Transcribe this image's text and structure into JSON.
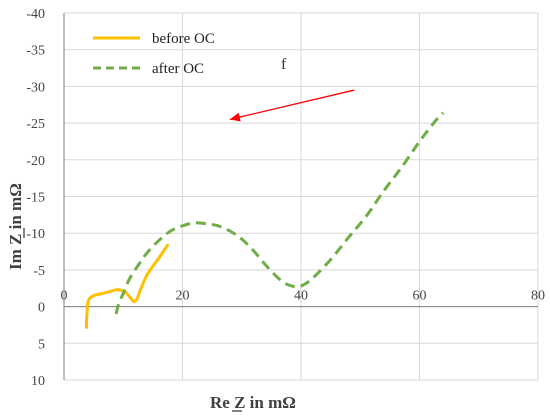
{
  "chart_data": {
    "type": "line",
    "title": "",
    "xlabel": "Re Z in mΩ",
    "ylabel": "Im Z in mΩ",
    "xlim": [
      0,
      80
    ],
    "ylim": [
      -40,
      10
    ],
    "y_axis_inverted": true,
    "grid": true,
    "x_ticks": [
      "0",
      "20",
      "40",
      "60",
      "80"
    ],
    "y_ticks": [
      "-40",
      "-35",
      "-30",
      "-25",
      "-20",
      "-15",
      "-10",
      "-5",
      "0",
      "5",
      "10"
    ],
    "legend_position": "top-left",
    "annotation_text": "f",
    "arrow": {
      "from": [
        49,
        -29.5
      ],
      "to": [
        28,
        -25.5
      ],
      "color": "#ff0000"
    },
    "series": [
      {
        "name": "before OC",
        "color": "#ffc000",
        "style": "solid",
        "x": [
          3.8,
          3.8,
          3.9,
          4.0,
          4.3,
          5.0,
          6.0,
          7.5,
          9.0,
          10.3,
          11.2,
          11.8,
          12.3,
          13.0,
          14.0,
          15.0,
          16.0,
          17.0,
          17.6
        ],
        "y": [
          3.0,
          2.0,
          0.6,
          -0.5,
          -1.1,
          -1.5,
          -1.7,
          -2.0,
          -2.3,
          -2.0,
          -1.2,
          -0.7,
          -1.0,
          -2.5,
          -4.3,
          -5.5,
          -6.6,
          -7.8,
          -8.5
        ]
      },
      {
        "name": "after OC",
        "color": "#70ad47",
        "style": "dashed",
        "x": [
          8.8,
          9.2,
          10.0,
          11.0,
          12.5,
          14.0,
          16.0,
          18.0,
          20.0,
          22.0,
          24.0,
          26.0,
          28.0,
          30.0,
          32.0,
          34.0,
          36.0,
          37.5,
          38.5,
          39.5,
          40.5,
          42.0,
          45.0,
          48.0,
          51.0,
          54.0,
          57.0,
          60.0,
          62.0,
          63.0,
          64.0
        ],
        "y": [
          1.0,
          -0.3,
          -1.8,
          -3.7,
          -5.6,
          -7.3,
          -9.0,
          -10.3,
          -11.0,
          -11.4,
          -11.3,
          -11.0,
          -10.3,
          -9.2,
          -7.6,
          -5.7,
          -4.0,
          -3.1,
          -2.8,
          -2.7,
          -3.0,
          -3.9,
          -6.4,
          -9.4,
          -12.3,
          -15.8,
          -19.0,
          -22.5,
          -24.6,
          -25.6,
          -26.4
        ]
      }
    ]
  }
}
